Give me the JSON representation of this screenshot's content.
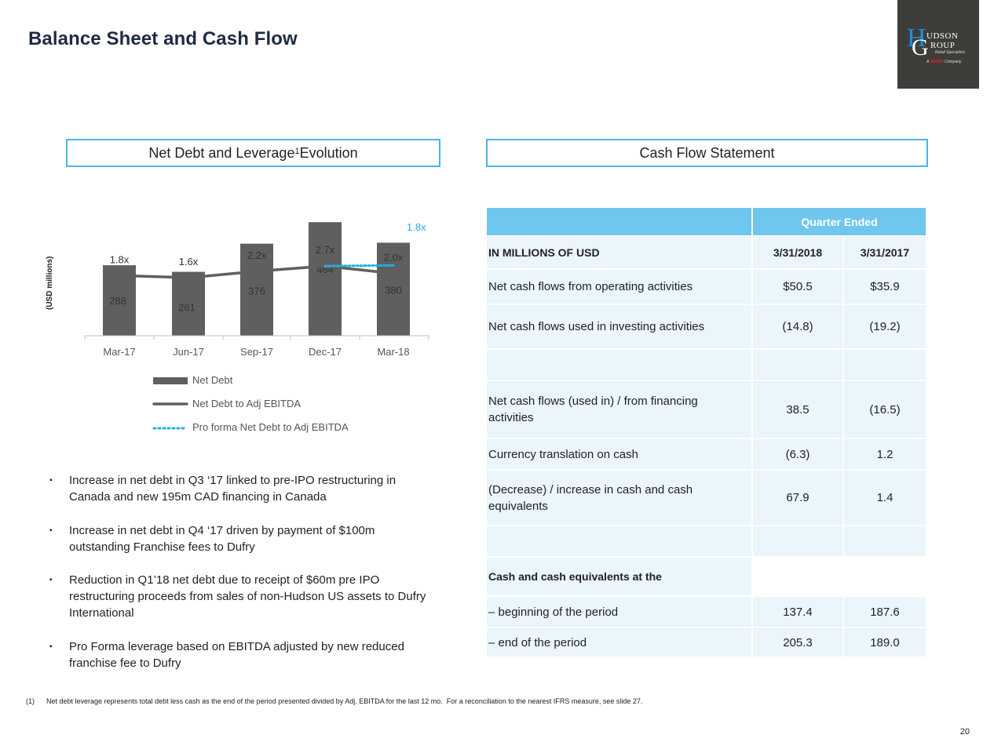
{
  "title": "Balance Sheet and Cash Flow",
  "logo": {
    "letter_h": "H",
    "word_udson": "UDSON",
    "letter_g": "G",
    "word_roup": "ROUP",
    "sub": "Retail Specialists",
    "company_prefix": "A ",
    "company_brand": "DUFRY",
    "company_suffix": " Company"
  },
  "left_section": {
    "title_pre": "Net Debt and Leverage",
    "title_sup": "1",
    "title_post": "Evolution"
  },
  "right_section": {
    "title": "Cash Flow Statement"
  },
  "colors": {
    "bar": "#5f5f5f",
    "line": "#5f5f5f",
    "proforma": "#22aee8",
    "accent": "#6fc6ee",
    "cell": "#eaf5fc"
  },
  "chart_data": {
    "type": "bar",
    "categories": [
      "Mar-17",
      "Jun-17",
      "Sep-17",
      "Dec-17",
      "Mar-18"
    ],
    "ylabel": "(USD millions)",
    "series": [
      {
        "name": "Net Debt",
        "type": "bar",
        "values": [
          288,
          261,
          376,
          464,
          380
        ]
      },
      {
        "name": "Net Debt to Adj EBITDA",
        "type": "line",
        "values": [
          1.8,
          1.6,
          2.2,
          2.7,
          2.0
        ],
        "labels": [
          "1.8x",
          "1.6x",
          "2.2x",
          "2.7x",
          "2.0x"
        ]
      },
      {
        "name": "Pro forma Net Debt to Adj EBITDA",
        "type": "line-dotted",
        "points": [
          {
            "x": "Dec-17",
            "y": 2.7
          },
          {
            "x": "Mar-18",
            "y": 1.8
          }
        ],
        "end_label": "1.8x"
      }
    ],
    "legend": [
      "Net Debt",
      "Net Debt to Adj EBITDA",
      "Pro forma Net Debt to Adj EBITDA"
    ],
    "legend_position": "bottom"
  },
  "bullets": [
    [
      "Increase in net debt in Q3 ‘17 linked to pre-IPO restructuring in",
      "Canada and new 195m CAD financing in Canada"
    ],
    [
      "Increase in net debt in Q4 ‘17 driven by payment of $100m",
      "outstanding Franchise fees to Dufry"
    ],
    [
      "Reduction in Q1’18 net debt due to receipt of $60m pre IPO",
      "restructuring proceeds from sales of non-Hudson US assets to Dufry",
      "International"
    ],
    [
      "Pro Forma leverage based on EBITDA adjusted by new reduced",
      "franchise fee to Dufry"
    ]
  ],
  "table": {
    "quarter_ended": "Quarter Ended",
    "unit_label": "IN MILLIONS OF USD",
    "col1": "3/31/2018",
    "col2": "3/31/2017",
    "rows": [
      {
        "label": "Net cash flows from operating activities",
        "v1": "$50.5",
        "v2": "$35.9"
      },
      {
        "label": "Net cash flows used in investing activities",
        "v1": "(14.8)",
        "v2": "(19.2)"
      },
      {
        "label": "",
        "v1": "",
        "v2": ""
      },
      {
        "label": "Net cash flows (used in) / from financing activities",
        "v1": "38.5",
        "v2": "(16.5)"
      },
      {
        "label": "Currency translation on cash",
        "v1": "(6.3)",
        "v2": "1.2"
      },
      {
        "label": "(Decrease) / increase in cash and cash equivalents",
        "v1": "67.9",
        "v2": "1.4"
      },
      {
        "label": "",
        "v1": "",
        "v2": ""
      },
      {
        "label": "Cash and cash equivalents at the",
        "v1": "",
        "v2": ""
      },
      {
        "label": "– beginning of the period",
        "v1": "137.4",
        "v2": "187.6"
      },
      {
        "label": "– end of the period",
        "v1": "205.3",
        "v2": "189.0"
      }
    ]
  },
  "footnote": "(1)      Net debt leverage represents total debt less cash as the end of the period presented divided by Adj. EBITDA for the last 12 mo.  For a reconciliation to the nearest IFRS measure, see slide 27.",
  "page_number": "20"
}
